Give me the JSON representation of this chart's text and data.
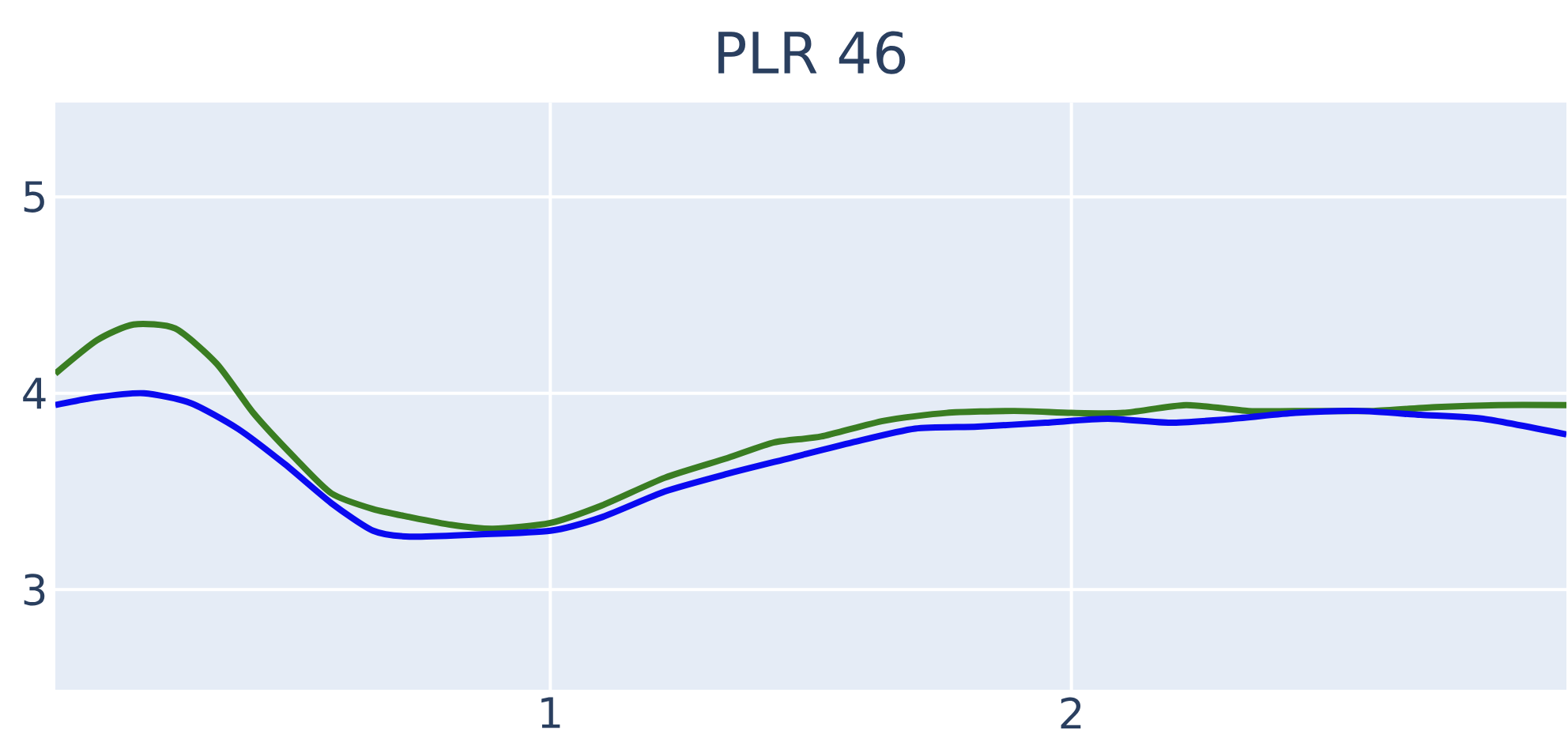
{
  "chart_data": {
    "type": "line",
    "title": "PLR 46",
    "xlim": [
      0.05,
      2.95
    ],
    "ylim": [
      2.49,
      5.48
    ],
    "xticks": [
      1,
      2
    ],
    "yticks": [
      3,
      4,
      5
    ],
    "grid": true,
    "series": [
      {
        "color": "#3a7d22",
        "x": [
          0.05,
          0.13,
          0.2,
          0.28,
          0.36,
          0.43,
          0.51,
          0.58,
          0.66,
          0.73,
          0.81,
          0.89,
          1.0,
          1.1,
          1.22,
          1.34,
          1.43,
          1.52,
          1.64,
          1.76,
          1.89,
          2.0,
          2.1,
          2.22,
          2.34,
          2.46,
          2.58,
          2.7,
          2.82,
          2.95
        ],
        "values": [
          4.1,
          4.27,
          4.35,
          4.33,
          4.15,
          3.9,
          3.67,
          3.49,
          3.41,
          3.37,
          3.33,
          3.31,
          3.34,
          3.43,
          3.57,
          3.67,
          3.75,
          3.78,
          3.86,
          3.9,
          3.91,
          3.9,
          3.9,
          3.94,
          3.91,
          3.91,
          3.91,
          3.93,
          3.94,
          3.94
        ]
      },
      {
        "color": "#0a0af0",
        "x": [
          0.05,
          0.13,
          0.22,
          0.31,
          0.4,
          0.49,
          0.58,
          0.66,
          0.73,
          0.85,
          1.0,
          1.1,
          1.22,
          1.34,
          1.46,
          1.58,
          1.7,
          1.82,
          1.95,
          2.07,
          2.19,
          2.31,
          2.43,
          2.55,
          2.67,
          2.79,
          2.95
        ],
        "values": [
          3.94,
          3.98,
          4.0,
          3.95,
          3.82,
          3.64,
          3.44,
          3.3,
          3.27,
          3.28,
          3.3,
          3.37,
          3.5,
          3.59,
          3.67,
          3.75,
          3.82,
          3.83,
          3.85,
          3.87,
          3.85,
          3.87,
          3.9,
          3.91,
          3.89,
          3.87,
          3.79
        ]
      }
    ]
  }
}
